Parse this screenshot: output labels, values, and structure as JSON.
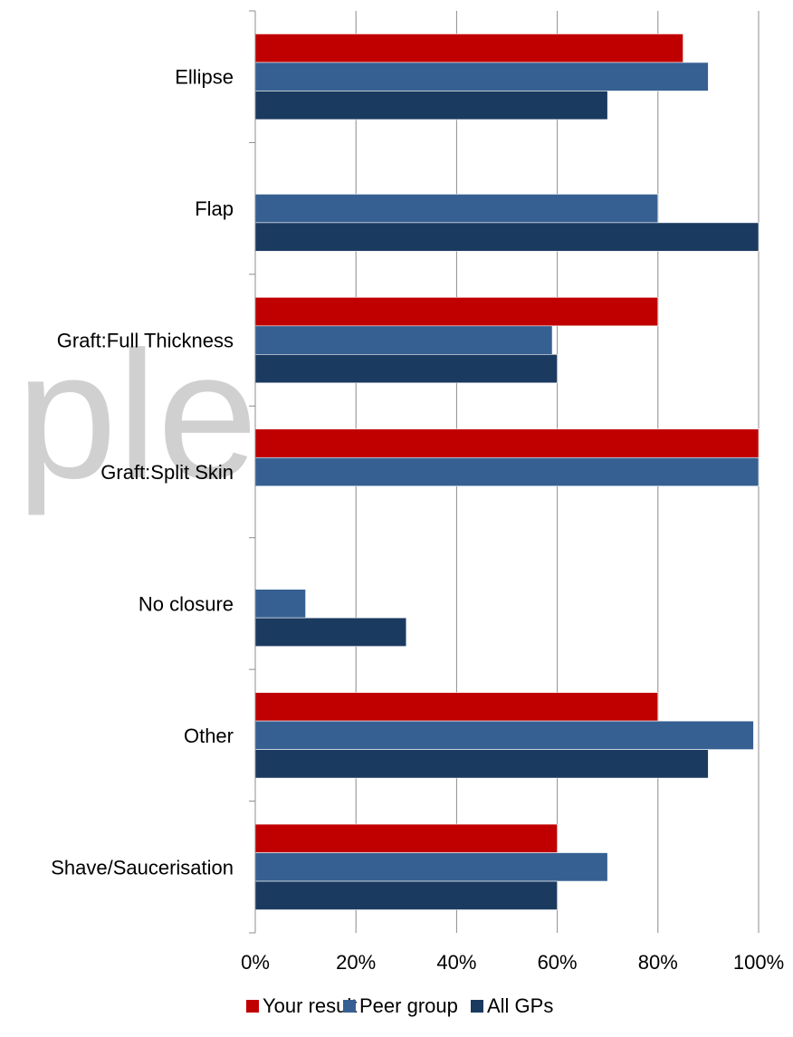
{
  "watermark": "ple",
  "chart_data": {
    "type": "bar",
    "orientation": "horizontal",
    "categories": [
      "Ellipse",
      "Flap",
      "Graft:Full Thickness",
      "Graft:Split Skin",
      "No closure",
      "Other",
      "Shave/Saucerisation"
    ],
    "series": [
      {
        "name": "Your result",
        "color": "#c00000",
        "values": [
          85,
          null,
          80,
          100,
          null,
          80,
          60
        ]
      },
      {
        "name": "Peer group",
        "color": "#376092",
        "values": [
          90,
          80,
          59,
          100,
          10,
          99,
          70
        ]
      },
      {
        "name": "All GPs",
        "color": "#1b3a60",
        "values": [
          70,
          100,
          60,
          null,
          30,
          90,
          60
        ]
      }
    ],
    "xlim": [
      0,
      100
    ],
    "xticks": [
      "0%",
      "20%",
      "40%",
      "60%",
      "80%",
      "100%"
    ],
    "grid": true,
    "legend_position": "bottom"
  }
}
